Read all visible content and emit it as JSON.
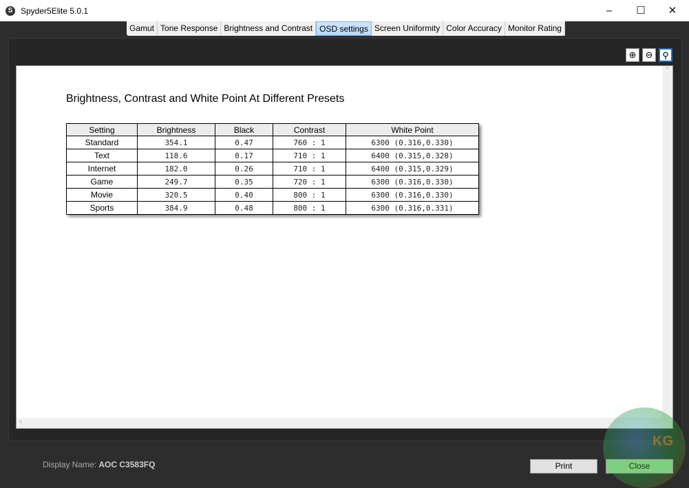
{
  "window": {
    "title": "Spyder5Elite 5.0.1"
  },
  "tabs": [
    {
      "label": "Gamut"
    },
    {
      "label": "Tone Response"
    },
    {
      "label": "Brightness and Contrast"
    },
    {
      "label": "OSD settings",
      "active": true
    },
    {
      "label": "Screen Uniformity"
    },
    {
      "label": "Color Accuracy"
    },
    {
      "label": "Monitor Rating"
    }
  ],
  "report": {
    "title": "Brightness, Contrast and White Point At Different Presets",
    "columns": [
      "Setting",
      "Brightness",
      "Black",
      "Contrast",
      "White Point"
    ],
    "rows": [
      [
        "Standard",
        "354.1",
        "0.47",
        "760 : 1",
        "6300 (0.316,0.330)"
      ],
      [
        "Text",
        "118.6",
        "0.17",
        "710 : 1",
        "6400 (0.315,0.328)"
      ],
      [
        "Internet",
        "182.0",
        "0.26",
        "710 : 1",
        "6400 (0.315,0.329)"
      ],
      [
        "Game",
        "249.7",
        "0.35",
        "720 : 1",
        "6300 (0.316,0.330)"
      ],
      [
        "Movie",
        "320.5",
        "0.40",
        "800 : 1",
        "6300 (0.316,0.330)"
      ],
      [
        "Sports",
        "384.9",
        "0.48",
        "800 : 1",
        "6300 (0.316,0.331)"
      ]
    ]
  },
  "footer": {
    "display_label": "Display Name:",
    "display_value": "AOC C3583FQ",
    "print": "Print",
    "close": "Close"
  },
  "watermark": "KG"
}
